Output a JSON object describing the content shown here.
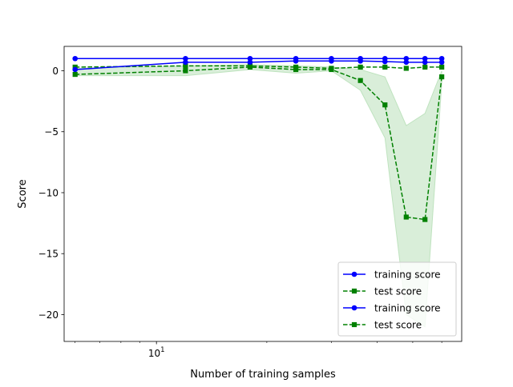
{
  "chart_data": {
    "type": "line",
    "xlabel": "Number of training samples",
    "ylabel": "Score",
    "xscale": "log",
    "xlim": [
      5.6,
      68
    ],
    "ylim": [
      -22.2,
      2.0
    ],
    "x_tick_labels": [
      {
        "value": 10,
        "base": "10",
        "exp": "1"
      }
    ],
    "x_minor_ticks": [
      6,
      7,
      8,
      9,
      20,
      30,
      40,
      50,
      60
    ],
    "y_ticks": [
      {
        "value": 0,
        "label": "0"
      },
      {
        "value": -5,
        "label": "−5"
      },
      {
        "value": -10,
        "label": "−10"
      },
      {
        "value": -15,
        "label": "−15"
      },
      {
        "value": -20,
        "label": "−20"
      }
    ],
    "grid": false,
    "legend_position": "lower-right",
    "colors": {
      "training": "#0000ff",
      "test": "#008000",
      "band": "#bfe3bf"
    },
    "x": [
      6,
      12,
      18,
      24,
      30,
      36,
      42,
      48,
      54,
      60
    ],
    "series": [
      {
        "name": "training score",
        "style": "solid-circle",
        "color": "#0000ff",
        "values": [
          1.0,
          1.0,
          1.0,
          1.0,
          1.0,
          1.0,
          1.0,
          1.0,
          1.0,
          1.0
        ]
      },
      {
        "name": "test score",
        "style": "dashed-square",
        "color": "#008000",
        "values": [
          0.3,
          0.4,
          0.4,
          0.3,
          0.2,
          0.3,
          0.3,
          0.2,
          0.3,
          0.3
        ]
      },
      {
        "name": "training score",
        "style": "solid-circle",
        "color": "#0000ff",
        "values": [
          0.1,
          0.7,
          0.7,
          0.8,
          0.8,
          0.8,
          0.75,
          0.7,
          0.7,
          0.7
        ]
      },
      {
        "name": "test score",
        "style": "dashed-square",
        "color": "#008000",
        "values": [
          -0.3,
          0.0,
          0.3,
          0.1,
          0.1,
          -0.8,
          -2.8,
          -12.0,
          -12.2,
          -0.5
        ]
      }
    ],
    "band": {
      "series_index": 3,
      "upper": [
        0.2,
        0.4,
        0.5,
        0.4,
        0.3,
        0.1,
        -0.5,
        -4.5,
        -3.5,
        0.0
      ],
      "lower": [
        -0.4,
        -0.4,
        0.1,
        -0.2,
        0.0,
        -1.6,
        -5.5,
        -20.0,
        -21.0,
        -1.0
      ]
    }
  }
}
